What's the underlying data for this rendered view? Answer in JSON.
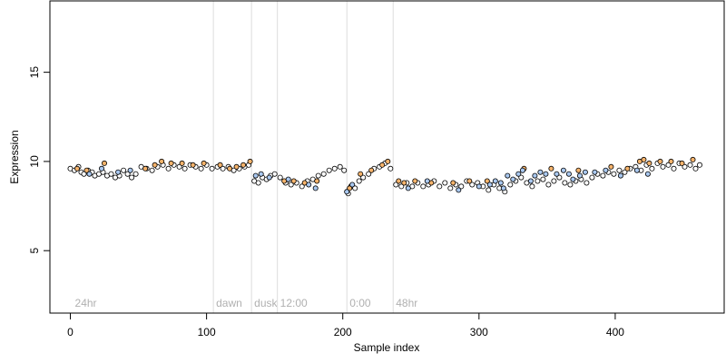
{
  "chart_data": {
    "type": "scatter",
    "xlabel": "Sample index",
    "ylabel": "Expression",
    "xlim": [
      -15,
      480
    ],
    "ylim": [
      1.5,
      19
    ],
    "x_ticks": [
      0,
      100,
      200,
      300,
      400
    ],
    "y_ticks": [
      5,
      10,
      15
    ],
    "segment_lines": [
      {
        "x": 105,
        "label": "dawn"
      },
      {
        "x": 133,
        "label": "dusk"
      },
      {
        "x": 152,
        "label": "12:00"
      },
      {
        "x": 203,
        "label": "0:00"
      },
      {
        "x": 237,
        "label": "48hr"
      }
    ],
    "start_label": {
      "x": 2,
      "label": "24hr"
    },
    "colors": {
      "black": "#000000",
      "orange": "#f5b36b",
      "blue": "#a9c8f0",
      "white": "#ffffff",
      "segment_line": "#dddddd",
      "segment_label": "#b0b0b0"
    },
    "series": [
      {
        "fill": "white",
        "points": [
          [
            0,
            9.6
          ],
          [
            3,
            9.5
          ],
          [
            6,
            9.7
          ],
          [
            8,
            9.4
          ],
          [
            10,
            9.3
          ],
          [
            13,
            9.5
          ],
          [
            16,
            9.4
          ],
          [
            18,
            9.2
          ],
          [
            21,
            9.3
          ],
          [
            24,
            9.4
          ],
          [
            27,
            9.2
          ],
          [
            30,
            9.3
          ],
          [
            33,
            9.1
          ],
          [
            36,
            9.2
          ],
          [
            39,
            9.5
          ],
          [
            42,
            9.3
          ],
          [
            45,
            9.1
          ],
          [
            48,
            9.3
          ],
          [
            52,
            9.7
          ],
          [
            56,
            9.6
          ],
          [
            60,
            9.5
          ],
          [
            64,
            9.7
          ],
          [
            68,
            9.8
          ],
          [
            72,
            9.6
          ],
          [
            76,
            9.8
          ],
          [
            80,
            9.7
          ],
          [
            84,
            9.6
          ],
          [
            88,
            9.8
          ],
          [
            92,
            9.7
          ],
          [
            96,
            9.6
          ],
          [
            100,
            9.8
          ],
          [
            104,
            9.6
          ],
          [
            108,
            9.7
          ],
          [
            112,
            9.6
          ],
          [
            116,
            9.7
          ],
          [
            120,
            9.5
          ],
          [
            124,
            9.6
          ],
          [
            128,
            9.7
          ],
          [
            131,
            9.8
          ],
          [
            135,
            8.9
          ],
          [
            138,
            8.8
          ],
          [
            141,
            9.1
          ],
          [
            144,
            9.0
          ],
          [
            147,
            9.2
          ],
          [
            150,
            9.3
          ],
          [
            154,
            9.1
          ],
          [
            158,
            8.8
          ],
          [
            162,
            8.7
          ],
          [
            166,
            8.8
          ],
          [
            170,
            8.6
          ],
          [
            174,
            8.9
          ],
          [
            178,
            9.0
          ],
          [
            182,
            9.2
          ],
          [
            186,
            9.3
          ],
          [
            190,
            9.5
          ],
          [
            194,
            9.6
          ],
          [
            198,
            9.7
          ],
          [
            201,
            9.5
          ],
          [
            204,
            8.2
          ],
          [
            206,
            8.6
          ],
          [
            209,
            8.5
          ],
          [
            212,
            8.9
          ],
          [
            215,
            9.1
          ],
          [
            219,
            9.3
          ],
          [
            223,
            9.6
          ],
          [
            227,
            9.7
          ],
          [
            231,
            9.9
          ],
          [
            235,
            9.6
          ],
          [
            239,
            8.7
          ],
          [
            243,
            8.6
          ],
          [
            247,
            8.8
          ],
          [
            251,
            8.6
          ],
          [
            255,
            8.8
          ],
          [
            259,
            8.6
          ],
          [
            263,
            8.7
          ],
          [
            267,
            8.9
          ],
          [
            271,
            8.6
          ],
          [
            275,
            8.8
          ],
          [
            279,
            8.5
          ],
          [
            283,
            8.7
          ],
          [
            287,
            8.6
          ],
          [
            291,
            8.9
          ],
          [
            295,
            8.7
          ],
          [
            299,
            8.8
          ],
          [
            303,
            8.6
          ],
          [
            307,
            8.4
          ],
          [
            311,
            8.7
          ],
          [
            315,
            8.5
          ],
          [
            319,
            8.3
          ],
          [
            323,
            8.7
          ],
          [
            327,
            8.9
          ],
          [
            331,
            9.1
          ],
          [
            335,
            8.8
          ],
          [
            339,
            8.6
          ],
          [
            343,
            8.9
          ],
          [
            347,
            9.0
          ],
          [
            351,
            8.7
          ],
          [
            355,
            8.9
          ],
          [
            359,
            9.1
          ],
          [
            363,
            8.8
          ],
          [
            367,
            8.7
          ],
          [
            371,
            8.9
          ],
          [
            375,
            9.0
          ],
          [
            379,
            8.8
          ],
          [
            383,
            9.1
          ],
          [
            387,
            9.3
          ],
          [
            391,
            9.2
          ],
          [
            395,
            9.4
          ],
          [
            399,
            9.3
          ],
          [
            403,
            9.5
          ],
          [
            407,
            9.4
          ],
          [
            411,
            9.6
          ],
          [
            415,
            9.7
          ],
          [
            419,
            9.5
          ],
          [
            423,
            9.8
          ],
          [
            427,
            9.6
          ],
          [
            431,
            9.9
          ],
          [
            435,
            9.7
          ],
          [
            439,
            9.8
          ],
          [
            443,
            9.6
          ],
          [
            447,
            9.9
          ],
          [
            451,
            9.7
          ],
          [
            455,
            9.8
          ],
          [
            459,
            9.6
          ],
          [
            462,
            9.8
          ]
        ]
      },
      {
        "fill": "orange",
        "points": [
          [
            5,
            9.6
          ],
          [
            12,
            9.5
          ],
          [
            25,
            9.9
          ],
          [
            55,
            9.6
          ],
          [
            62,
            9.8
          ],
          [
            67,
            10.0
          ],
          [
            74,
            9.9
          ],
          [
            82,
            9.9
          ],
          [
            90,
            9.8
          ],
          [
            98,
            9.9
          ],
          [
            110,
            9.8
          ],
          [
            117,
            9.6
          ],
          [
            122,
            9.7
          ],
          [
            127,
            9.8
          ],
          [
            132,
            10.0
          ],
          [
            157,
            8.9
          ],
          [
            164,
            8.9
          ],
          [
            172,
            8.8
          ],
          [
            181,
            8.9
          ],
          [
            205,
            8.5
          ],
          [
            213,
            9.3
          ],
          [
            221,
            9.5
          ],
          [
            229,
            9.8
          ],
          [
            233,
            10.0
          ],
          [
            241,
            8.9
          ],
          [
            245,
            8.8
          ],
          [
            253,
            8.9
          ],
          [
            265,
            8.8
          ],
          [
            281,
            8.8
          ],
          [
            293,
            8.9
          ],
          [
            306,
            8.9
          ],
          [
            333,
            9.6
          ],
          [
            353,
            9.6
          ],
          [
            373,
            9.5
          ],
          [
            397,
            9.7
          ],
          [
            409,
            9.6
          ],
          [
            418,
            10.0
          ],
          [
            421,
            10.1
          ],
          [
            425,
            9.9
          ],
          [
            433,
            10.0
          ],
          [
            441,
            10.0
          ],
          [
            449,
            9.9
          ],
          [
            457,
            10.1
          ]
        ]
      },
      {
        "fill": "blue",
        "points": [
          [
            14,
            9.3
          ],
          [
            23,
            9.6
          ],
          [
            35,
            9.4
          ],
          [
            44,
            9.5
          ],
          [
            136,
            9.2
          ],
          [
            140,
            9.3
          ],
          [
            146,
            9.1
          ],
          [
            160,
            9.0
          ],
          [
            175,
            8.7
          ],
          [
            180,
            8.5
          ],
          [
            203,
            8.3
          ],
          [
            207,
            8.7
          ],
          [
            248,
            8.5
          ],
          [
            262,
            8.9
          ],
          [
            285,
            8.4
          ],
          [
            300,
            8.6
          ],
          [
            308,
            8.7
          ],
          [
            312,
            8.9
          ],
          [
            316,
            8.8
          ],
          [
            318,
            8.5
          ],
          [
            321,
            9.2
          ],
          [
            325,
            9.0
          ],
          [
            329,
            9.3
          ],
          [
            332,
            9.5
          ],
          [
            338,
            8.9
          ],
          [
            341,
            9.2
          ],
          [
            345,
            9.4
          ],
          [
            349,
            9.3
          ],
          [
            357,
            9.3
          ],
          [
            362,
            9.5
          ],
          [
            366,
            9.3
          ],
          [
            369,
            9.0
          ],
          [
            374,
            9.2
          ],
          [
            378,
            9.4
          ],
          [
            385,
            9.4
          ],
          [
            393,
            9.5
          ],
          [
            404,
            9.2
          ],
          [
            416,
            9.5
          ],
          [
            424,
            9.3
          ]
        ]
      }
    ]
  }
}
